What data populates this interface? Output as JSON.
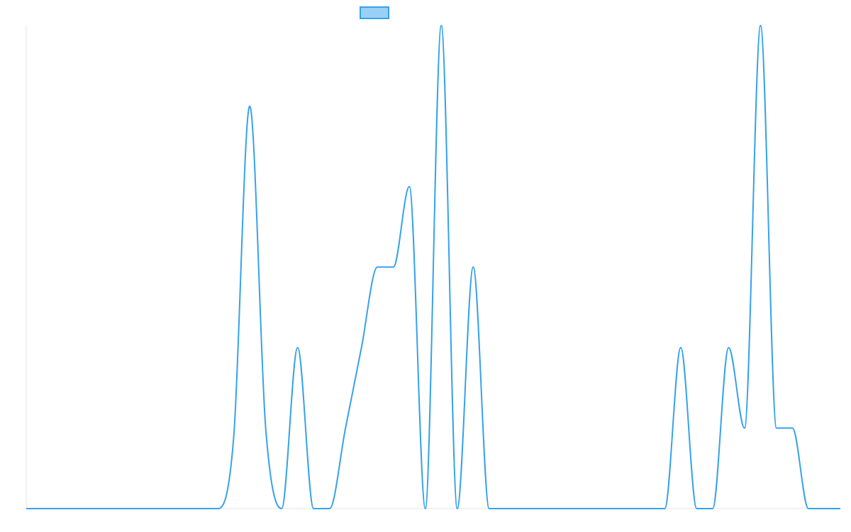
{
  "colors": {
    "line": "#36a2eb",
    "legend_fill": "#9ad0f5",
    "axis": "#e6e6e6"
  },
  "legend": {
    "label": "",
    "position": "top-center"
  },
  "chart_data": {
    "type": "line",
    "title": "",
    "xlabel": "",
    "ylabel": "",
    "grid": false,
    "xlim": [
      0,
      51
    ],
    "ylim": [
      0,
      6
    ],
    "series": [
      {
        "x": [
          0,
          1,
          2,
          3,
          4,
          5,
          6,
          7,
          8,
          9,
          10,
          11,
          12,
          13,
          14,
          15,
          16,
          17,
          18,
          19,
          20,
          21,
          22,
          23,
          24,
          25,
          26,
          27,
          28,
          29,
          30,
          31,
          32,
          33,
          34,
          35,
          36,
          37,
          38,
          39,
          40,
          41,
          42,
          43,
          44,
          45,
          46,
          47,
          48,
          49,
          50,
          51
        ],
        "values": [
          0,
          0,
          0,
          0,
          0,
          0,
          0,
          0,
          0,
          0,
          0,
          0,
          0,
          0.9,
          5,
          1,
          0,
          2,
          0,
          0,
          1,
          2,
          3,
          3,
          4,
          0,
          6,
          0,
          3,
          0,
          0,
          0,
          0,
          0,
          0,
          0,
          0,
          0,
          0,
          0,
          0,
          2,
          0,
          0,
          2,
          1,
          6,
          1,
          1,
          0,
          0,
          0
        ]
      }
    ]
  }
}
